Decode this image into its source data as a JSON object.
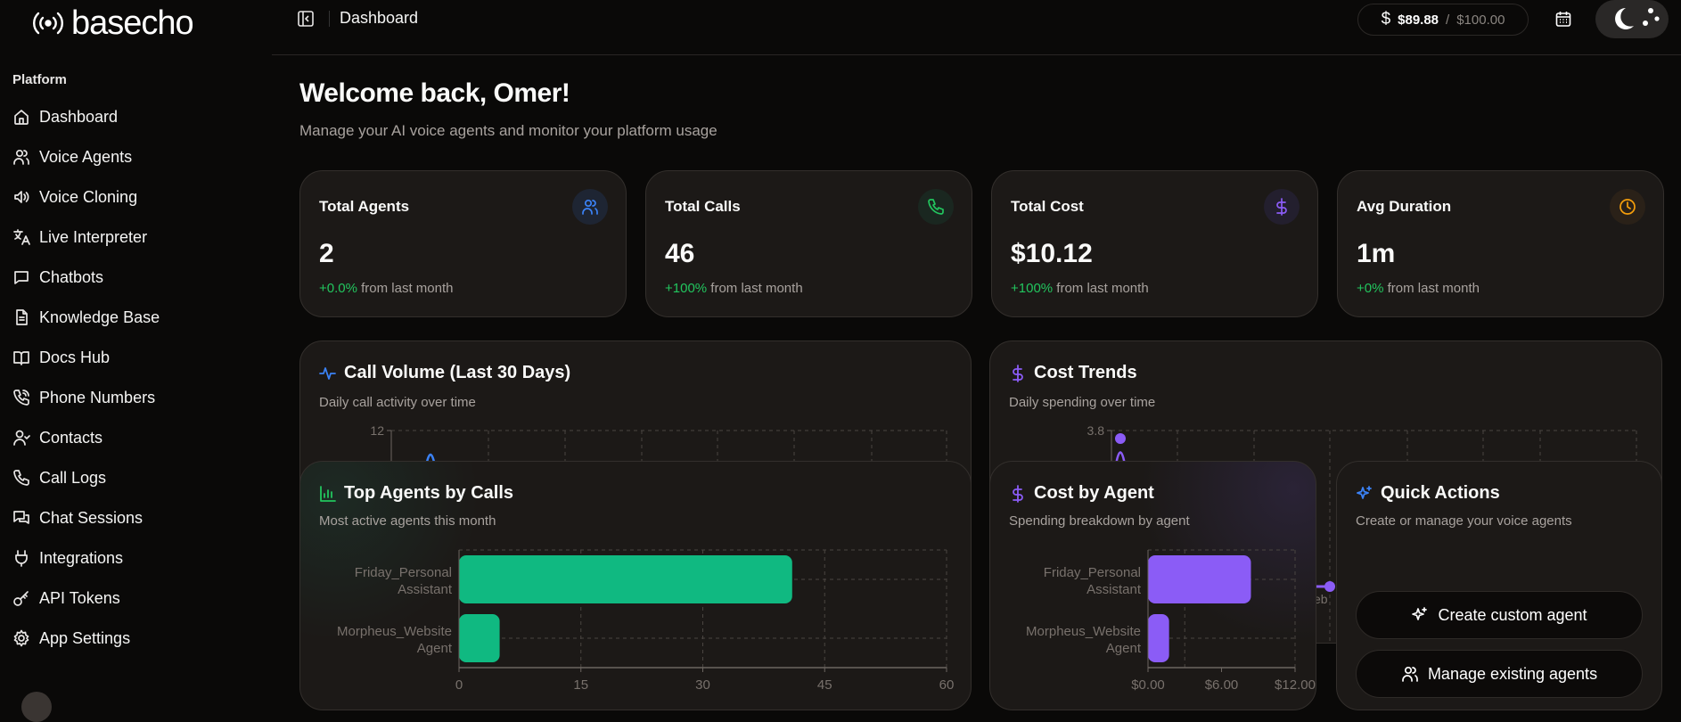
{
  "app": {
    "logo_text": "basecho",
    "logo_icon": "broadcast-icon"
  },
  "sidebar": {
    "section": "Platform",
    "items": [
      {
        "label": "Dashboard",
        "icon": "home"
      },
      {
        "label": "Voice Agents",
        "icon": "users"
      },
      {
        "label": "Voice Cloning",
        "icon": "speaker"
      },
      {
        "label": "Live Interpreter",
        "icon": "languages"
      },
      {
        "label": "Chatbots",
        "icon": "message"
      },
      {
        "label": "Knowledge Base",
        "icon": "file"
      },
      {
        "label": "Docs Hub",
        "icon": "book"
      },
      {
        "label": "Phone Numbers",
        "icon": "phone-call"
      },
      {
        "label": "Contacts",
        "icon": "user"
      },
      {
        "label": "Call Logs",
        "icon": "phone"
      },
      {
        "label": "Chat Sessions",
        "icon": "messages"
      },
      {
        "label": "Integrations",
        "icon": "plug"
      },
      {
        "label": "API Tokens",
        "icon": "key"
      },
      {
        "label": "App Settings",
        "icon": "gear"
      }
    ]
  },
  "header": {
    "breadcrumb": "Dashboard",
    "credits": {
      "currency_icon": "$",
      "used": "$89.88",
      "separator": "/",
      "limit": "$100.00"
    }
  },
  "main": {
    "title": "Welcome back, Omer!",
    "subtitle": "Manage your AI voice agents and monitor your platform usage",
    "stats": [
      {
        "title": "Total Agents",
        "value": "2",
        "change": "+0.0%",
        "suffix": " from last month",
        "icon": "users",
        "color": "#3b82f6",
        "bg": "#1e2533"
      },
      {
        "title": "Total Calls",
        "value": "46",
        "change": "+100%",
        "suffix": " from last month",
        "icon": "phone",
        "color": "#22c55e",
        "bg": "#1a2720"
      },
      {
        "title": "Total Cost",
        "value": "$10.12",
        "change": "+100%",
        "suffix": " from last month",
        "icon": "dollar",
        "color": "#8b5cf6",
        "bg": "#231f2e"
      },
      {
        "title": "Avg Duration",
        "value": "1m",
        "change": "+0%",
        "suffix": " from last month",
        "icon": "clock",
        "color": "#f59e0b",
        "bg": "#2a2118"
      }
    ],
    "call_volume": {
      "title": "Call Volume (Last 30 Days)",
      "subtitle": "Daily call activity over time"
    },
    "cost_trends": {
      "title": "Cost Trends",
      "subtitle": "Daily spending over time",
      "partial_x_label": "eb"
    },
    "top_agents": {
      "title": "Top Agents by Calls",
      "subtitle": "Most active agents this month"
    },
    "cost_by_agent": {
      "title": "Cost by Agent",
      "subtitle": "Spending breakdown by agent"
    },
    "quick_actions": {
      "title": "Quick Actions",
      "subtitle": "Create or manage your voice agents",
      "buttons": [
        {
          "label": "Create custom agent",
          "icon": "sparkles"
        },
        {
          "label": "Manage existing agents",
          "icon": "users"
        }
      ]
    }
  },
  "chart_data": [
    {
      "id": "call_volume",
      "type": "line",
      "y_tick_labels": [
        "12"
      ],
      "color": "#3b82f6",
      "grid": true
    },
    {
      "id": "cost_trends",
      "type": "line",
      "y_tick_labels": [
        "3.8"
      ],
      "color": "#8b5cf6",
      "grid": true
    },
    {
      "id": "top_agents",
      "type": "bar",
      "orientation": "horizontal",
      "categories": [
        [
          "Friday_Personal",
          "Assistant"
        ],
        [
          "Morpheus_Website",
          "Agent"
        ]
      ],
      "values": [
        41,
        5
      ],
      "xlim": [
        0,
        60
      ],
      "x_ticks": [
        0,
        15,
        30,
        45,
        60
      ],
      "x_tick_labels": [
        "0",
        "15",
        "30",
        "45",
        "60"
      ],
      "color": "#10b981",
      "grid": true
    },
    {
      "id": "cost_by_agent",
      "type": "bar",
      "orientation": "horizontal",
      "categories": [
        [
          "Friday_Personal",
          "Assistant"
        ],
        [
          "Morpheus_Website",
          "Agent"
        ]
      ],
      "values": [
        8.4,
        1.72
      ],
      "xlim": [
        0,
        12
      ],
      "x_ticks": [
        0,
        6,
        12
      ],
      "x_tick_labels": [
        "$0.00",
        "$6.00",
        "$12.00"
      ],
      "color": "#8b5cf6",
      "grid": true
    }
  ]
}
